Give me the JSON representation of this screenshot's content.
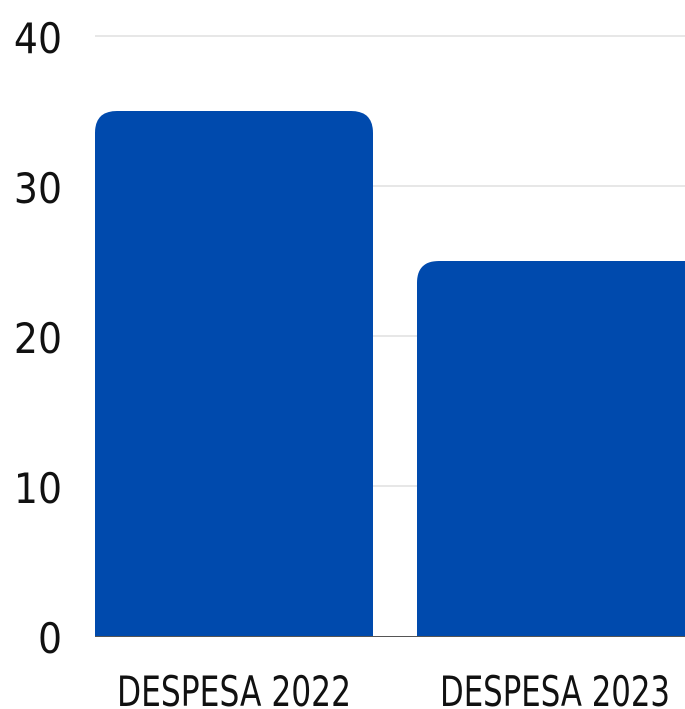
{
  "chart_data": {
    "type": "bar",
    "categories": [
      "DESPESA 2022",
      "DESPESA 2023"
    ],
    "values": [
      35,
      25
    ],
    "title": "",
    "xlabel": "",
    "ylabel": "",
    "ylim": [
      0,
      40
    ],
    "yticks": [
      0,
      10,
      20,
      30,
      40
    ],
    "grid": true,
    "bar_color": "#004aad",
    "legend": "none"
  }
}
